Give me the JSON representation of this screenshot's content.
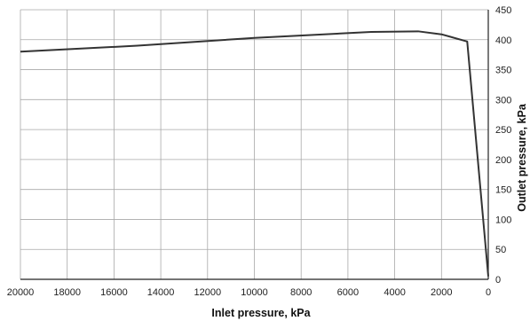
{
  "chart_data": {
    "type": "line",
    "xlabel": "Inlet pressure, kPa",
    "ylabel": "Outlet pressure, kPa",
    "xlim": [
      20000,
      0
    ],
    "ylim": [
      0,
      450
    ],
    "x_ticks": [
      "20000",
      "18000",
      "16000",
      "14000",
      "12000",
      "10000",
      "8000",
      "6000",
      "4000",
      "2000",
      "0"
    ],
    "y_ticks": [
      "0",
      "50",
      "100",
      "150",
      "200",
      "250",
      "300",
      "350",
      "400",
      "450"
    ],
    "x_reversed": true,
    "grid": true,
    "series": [
      {
        "color": "#333333",
        "points": [
          {
            "x": 20000,
            "y": 380
          },
          {
            "x": 15000,
            "y": 390
          },
          {
            "x": 10000,
            "y": 403
          },
          {
            "x": 5000,
            "y": 413
          },
          {
            "x": 3000,
            "y": 414
          },
          {
            "x": 2000,
            "y": 409
          },
          {
            "x": 900,
            "y": 397
          },
          {
            "x": 0,
            "y": 5
          }
        ]
      }
    ]
  }
}
